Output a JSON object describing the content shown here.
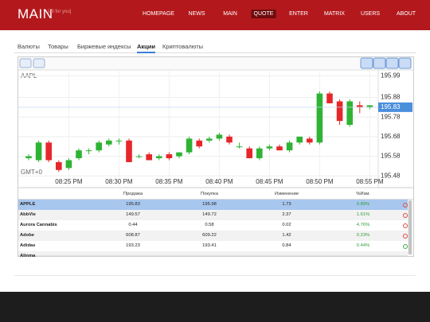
{
  "header": {
    "logo": "MAIN",
    "tagline": "[all for you]",
    "nav": [
      "HOMEPAGE",
      "NEWS",
      "MAIN",
      "QUOTE",
      "ENTER",
      "MATRIX",
      "USERS",
      "ABOUT"
    ],
    "active_nav": 3
  },
  "tabs": {
    "items": [
      "Валюты",
      "Товары",
      "Биржевые индексы",
      "Акции",
      "Криптовалюты"
    ],
    "active": 3
  },
  "chart_data": {
    "type": "candlestick",
    "title": "AAPL",
    "timezone": "GMT+0",
    "categories": [
      null,
      null,
      null,
      null,
      "08:25 PM",
      null,
      null,
      null,
      null,
      "08:30 PM",
      null,
      null,
      null,
      null,
      "08:35 PM",
      null,
      null,
      null,
      null,
      "08:40 PM",
      null,
      null,
      null,
      null,
      "08:45 PM",
      null,
      null,
      null,
      null,
      "08:50 PM",
      null,
      null,
      null,
      null,
      "08:55 PM"
    ],
    "open": [
      195.57,
      195.56,
      195.65,
      195.55,
      195.52,
      195.57,
      195.61,
      195.61,
      195.64,
      195.66,
      195.66,
      195.58,
      195.59,
      195.57,
      195.59,
      195.58,
      195.6,
      195.66,
      195.66,
      195.67,
      195.68,
      195.63,
      195.62,
      195.57,
      195.62,
      195.63,
      195.61,
      195.65,
      195.67,
      195.65,
      195.9,
      195.86,
      195.74,
      195.84,
      195.83
    ],
    "high": [
      195.59,
      195.66,
      195.66,
      195.56,
      195.57,
      195.62,
      195.62,
      195.66,
      195.67,
      195.67,
      195.67,
      195.59,
      195.6,
      195.59,
      195.6,
      195.6,
      195.68,
      195.67,
      195.68,
      195.7,
      195.69,
      195.65,
      195.63,
      195.63,
      195.64,
      195.64,
      195.66,
      195.68,
      195.68,
      195.91,
      195.91,
      195.87,
      195.87,
      195.86,
      195.84
    ],
    "low": [
      195.56,
      195.55,
      195.55,
      195.5,
      195.51,
      195.56,
      195.59,
      195.6,
      195.63,
      195.64,
      195.55,
      195.57,
      195.56,
      195.56,
      195.56,
      195.57,
      195.59,
      195.62,
      195.65,
      195.66,
      195.64,
      195.62,
      195.57,
      195.56,
      195.61,
      195.61,
      195.6,
      195.64,
      195.64,
      195.64,
      195.85,
      195.74,
      195.73,
      195.8,
      195.82
    ],
    "close": [
      195.58,
      195.65,
      195.56,
      195.51,
      195.56,
      195.61,
      195.61,
      195.65,
      195.66,
      195.66,
      195.55,
      195.58,
      195.56,
      195.58,
      195.57,
      195.6,
      195.67,
      195.63,
      195.67,
      195.69,
      195.65,
      195.63,
      195.57,
      195.62,
      195.63,
      195.61,
      195.65,
      195.68,
      195.65,
      195.9,
      195.85,
      195.76,
      195.86,
      195.83,
      195.84
    ],
    "up_color": "#2fb334",
    "down_color": "#e6262b",
    "last_price": 195.83,
    "last_price_color": "#4a8fdc",
    "ylim": [
      195.42,
      196.02
    ],
    "yticks": [
      195.99,
      195.88,
      195.78,
      195.68,
      195.58,
      195.48
    ],
    "grid": true
  },
  "table": {
    "columns": [
      "Продажа",
      "Покупка",
      "Изменение",
      "%Изм."
    ],
    "rows": [
      [
        "APPLE",
        "195.83",
        "195.98",
        "1.73",
        "0.89%"
      ],
      [
        "AbbVie",
        "149.57",
        "149.72",
        "2.37",
        "1.61%"
      ],
      [
        "Aurora Cannabis",
        "0.44",
        "0.58",
        "0.02",
        "4.76%"
      ],
      [
        "Adobe",
        "608.87",
        "609.22",
        "1.42",
        "0.23%"
      ],
      [
        "Adidas",
        "193.23",
        "193.41",
        "0.84",
        "0.44%"
      ],
      [
        "Alinma"
      ]
    ],
    "selected_row": 0,
    "icon_colors": [
      "#e04848",
      "#e04848",
      "#e04848",
      "#e04848",
      "#3cb043"
    ]
  }
}
